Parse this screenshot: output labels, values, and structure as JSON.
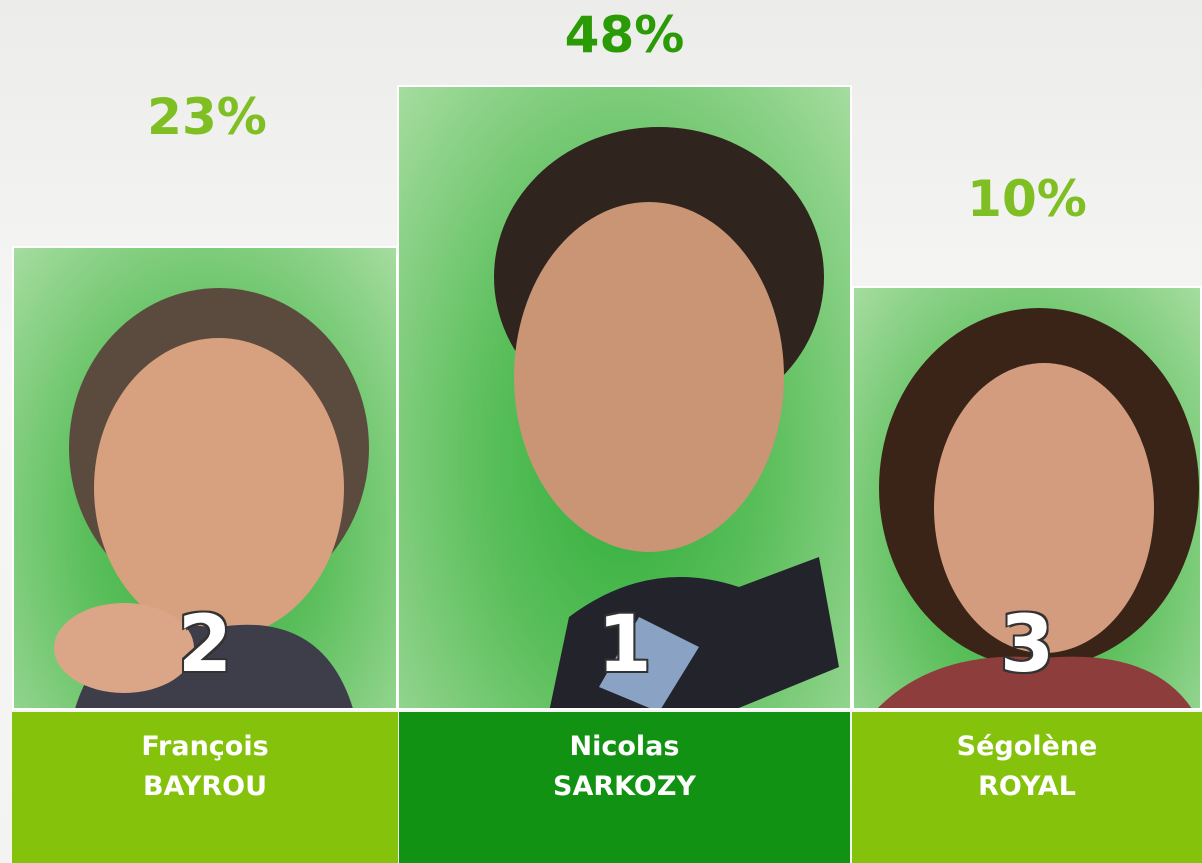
{
  "podium": {
    "candidates": [
      {
        "percent": "23%",
        "rank": "2",
        "first_name": "François",
        "last_name": "BAYROU"
      },
      {
        "percent": "48%",
        "rank": "1",
        "first_name": "Nicolas",
        "last_name": "SARKOZY"
      },
      {
        "percent": "10%",
        "rank": "3",
        "first_name": "Ségolène",
        "last_name": "ROYAL"
      }
    ]
  }
}
